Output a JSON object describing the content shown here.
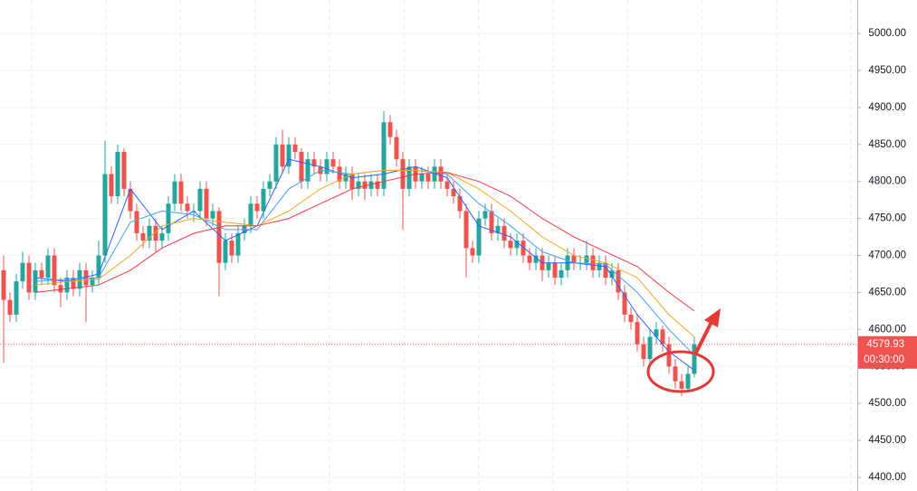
{
  "chart_data": {
    "type": "candlestick",
    "ylim": [
      4381.7,
      5045.2
    ],
    "yticks": [
      {
        "value": 4400,
        "label": "4400.00"
      },
      {
        "value": 4450,
        "label": "4450.00"
      },
      {
        "value": 4500,
        "label": "4500.00"
      },
      {
        "value": 4550,
        "label": "4550.00"
      },
      {
        "value": 4600,
        "label": "4600.00"
      },
      {
        "value": 4650,
        "label": "4650.00"
      },
      {
        "value": 4700,
        "label": "4700.00"
      },
      {
        "value": 4750,
        "label": "4750.00"
      },
      {
        "value": 4800,
        "label": "4800.00"
      },
      {
        "value": 4850,
        "label": "4850.00"
      },
      {
        "value": 4900,
        "label": "4900.00"
      },
      {
        "value": 4950,
        "label": "4950.00"
      },
      {
        "value": 5000,
        "label": "5000.00"
      }
    ],
    "grid": true,
    "up_color": "#26a69a",
    "down_color": "#ef5350",
    "open": [
      4680,
      4640,
      4620,
      4665,
      4690,
      4650,
      4680,
      4670,
      4700,
      4660,
      4650,
      4670,
      4655,
      4680,
      4660,
      4670,
      4700,
      4810,
      4780,
      4840,
      4790,
      4760,
      4730,
      4720,
      4740,
      4720,
      4730,
      4770,
      4800,
      4770,
      4760,
      4760,
      4790,
      4750,
      4760,
      4690,
      4720,
      4700,
      4730,
      4740,
      4770,
      4760,
      4790,
      4800,
      4850,
      4820,
      4850,
      4840,
      4800,
      4830,
      4820,
      4810,
      4830,
      4820,
      4800,
      4810,
      4790,
      4800,
      4790,
      4800,
      4790,
      4880,
      4860,
      4830,
      4790,
      4820,
      4800,
      4810,
      4800,
      4820,
      4800,
      4790,
      4780,
      4760,
      4710,
      4700,
      4750,
      4760,
      4730,
      4740,
      4720,
      4710,
      4720,
      4700,
      4690,
      4700,
      4680,
      4690,
      4670,
      4680,
      4700,
      4690,
      4690,
      4700,
      4680,
      4690,
      4670,
      4680,
      4650,
      4620,
      4610,
      4580,
      4560,
      4590,
      4600,
      4580,
      4550,
      4530,
      4520,
      4540
    ],
    "high": [
      4700,
      4650,
      4675,
      4705,
      4700,
      4690,
      4690,
      4710,
      4710,
      4670,
      4680,
      4680,
      4690,
      4690,
      4680,
      4720,
      4855,
      4820,
      4850,
      4845,
      4800,
      4770,
      4740,
      4750,
      4750,
      4740,
      4780,
      4810,
      4810,
      4780,
      4770,
      4800,
      4800,
      4770,
      4765,
      4730,
      4730,
      4740,
      4750,
      4780,
      4780,
      4800,
      4810,
      4860,
      4870,
      4860,
      4860,
      4845,
      4840,
      4840,
      4830,
      4840,
      4840,
      4830,
      4820,
      4820,
      4810,
      4810,
      4810,
      4810,
      4895,
      4890,
      4870,
      4840,
      4830,
      4830,
      4820,
      4820,
      4830,
      4830,
      4810,
      4800,
      4790,
      4770,
      4720,
      4760,
      4770,
      4770,
      4750,
      4750,
      4730,
      4730,
      4730,
      4710,
      4710,
      4710,
      4700,
      4700,
      4690,
      4710,
      4710,
      4700,
      4720,
      4710,
      4700,
      4700,
      4690,
      4690,
      4660,
      4630,
      4620,
      4590,
      4600,
      4610,
      4605,
      4590,
      4560,
      4540,
      4550,
      4590
    ],
    "low": [
      4555,
      4610,
      4610,
      4655,
      4640,
      4640,
      4660,
      4660,
      4650,
      4630,
      4640,
      4645,
      4645,
      4610,
      4650,
      4660,
      4690,
      4770,
      4770,
      4780,
      4750,
      4720,
      4710,
      4710,
      4705,
      4710,
      4720,
      4760,
      4760,
      4750,
      4745,
      4750,
      4740,
      4740,
      4645,
      4680,
      4690,
      4690,
      4720,
      4730,
      4750,
      4750,
      4780,
      4790,
      4810,
      4810,
      4830,
      4790,
      4790,
      4810,
      4800,
      4800,
      4810,
      4790,
      4790,
      4775,
      4780,
      4775,
      4780,
      4780,
      4780,
      4850,
      4820,
      4735,
      4780,
      4790,
      4790,
      4790,
      4790,
      4790,
      4780,
      4770,
      4750,
      4670,
      4690,
      4690,
      4740,
      4720,
      4720,
      4710,
      4700,
      4700,
      4690,
      4680,
      4680,
      4665,
      4670,
      4660,
      4660,
      4670,
      4680,
      4680,
      4680,
      4670,
      4670,
      4660,
      4660,
      4640,
      4610,
      4600,
      4570,
      4550,
      4550,
      4580,
      4570,
      4540,
      4520,
      4510,
      4515,
      4535
    ],
    "close": [
      4640,
      4620,
      4665,
      4690,
      4650,
      4680,
      4670,
      4700,
      4660,
      4650,
      4670,
      4655,
      4680,
      4660,
      4670,
      4700,
      4810,
      4780,
      4840,
      4790,
      4760,
      4730,
      4720,
      4740,
      4720,
      4730,
      4770,
      4800,
      4770,
      4760,
      4760,
      4790,
      4750,
      4760,
      4690,
      4720,
      4700,
      4730,
      4740,
      4770,
      4760,
      4790,
      4800,
      4850,
      4820,
      4850,
      4840,
      4800,
      4830,
      4820,
      4810,
      4830,
      4820,
      4800,
      4810,
      4790,
      4800,
      4790,
      4800,
      4790,
      4880,
      4860,
      4830,
      4790,
      4820,
      4800,
      4810,
      4800,
      4820,
      4800,
      4790,
      4780,
      4760,
      4710,
      4700,
      4750,
      4760,
      4730,
      4740,
      4720,
      4710,
      4720,
      4700,
      4690,
      4700,
      4680,
      4690,
      4670,
      4680,
      4700,
      4690,
      4690,
      4700,
      4680,
      4690,
      4670,
      4680,
      4650,
      4620,
      4610,
      4580,
      4560,
      4590,
      4600,
      4580,
      4550,
      4530,
      4520,
      4540,
      4579.93
    ],
    "lines": [
      {
        "color": "#2962ff",
        "x": [
          5,
          10,
          15,
          20,
          25,
          30,
          35,
          40,
          45,
          50,
          55,
          60,
          65,
          70,
          75,
          80,
          85,
          90,
          95,
          100,
          105,
          109
        ],
        "values": [
          4670,
          4665,
          4675,
          4790,
          4735,
          4760,
          4720,
          4740,
          4830,
          4820,
          4805,
          4810,
          4820,
          4805,
          4740,
          4725,
          4690,
          4690,
          4685,
          4620,
          4570,
          4545
        ]
      },
      {
        "color": "#42a5f5",
        "x": [
          5,
          10,
          15,
          20,
          25,
          30,
          35,
          40,
          45,
          50,
          55,
          60,
          65,
          70,
          75,
          80,
          85,
          90,
          95,
          100,
          105,
          109
        ],
        "values": [
          4665,
          4668,
          4670,
          4745,
          4760,
          4755,
          4735,
          4735,
          4790,
          4815,
          4810,
          4815,
          4815,
          4810,
          4770,
          4740,
          4705,
          4690,
          4688,
          4650,
          4600,
          4565
        ]
      },
      {
        "color": "#f5a623",
        "x": [
          5,
          10,
          15,
          20,
          25,
          30,
          35,
          40,
          45,
          50,
          55,
          60,
          65,
          70,
          75,
          80,
          85,
          90,
          95,
          100,
          105,
          109
        ],
        "values": [
          4660,
          4665,
          4668,
          4700,
          4740,
          4750,
          4745,
          4740,
          4760,
          4790,
          4810,
          4815,
          4815,
          4812,
          4790,
          4760,
          4725,
          4700,
          4690,
          4670,
          4620,
          4590
        ]
      },
      {
        "color": "#f23645",
        "x": [
          5,
          10,
          15,
          20,
          25,
          30,
          35,
          40,
          45,
          50,
          55,
          60,
          65,
          70,
          75,
          80,
          85,
          90,
          95,
          100,
          105,
          109
        ],
        "values": [
          4650,
          4655,
          4660,
          4680,
          4710,
          4730,
          4740,
          4740,
          4750,
          4770,
          4790,
          4800,
          4810,
          4812,
          4800,
          4780,
          4750,
          4725,
          4705,
          4685,
          4650,
          4625
        ]
      }
    ],
    "countdown": "00:30:00"
  }
}
